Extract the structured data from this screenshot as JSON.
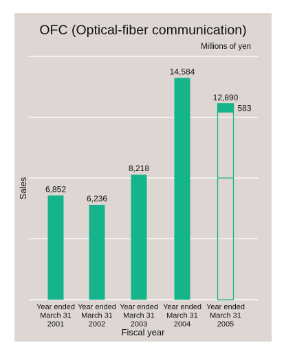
{
  "chart_data": {
    "type": "bar",
    "title": "OFC (Optical-fiber communication)",
    "unit_label": "Millions of yen",
    "ylabel": "Sales",
    "xlabel": "Fiscal year",
    "ylim": [
      0,
      16000
    ],
    "grid": true,
    "categories": [
      [
        "Year ended",
        "March 31",
        "2001"
      ],
      [
        "Year ended",
        "March 31",
        "2002"
      ],
      [
        "Year ended",
        "March 31",
        "2003"
      ],
      [
        "Year ended",
        "March 31",
        "2004"
      ],
      [
        "Year ended",
        "March 31",
        "2005"
      ]
    ],
    "series": [
      {
        "values": [
          6852,
          6236,
          8218,
          14584,
          583
        ],
        "labels": [
          "6,852",
          "6,236",
          "8,218",
          "14,584",
          "583"
        ]
      }
    ],
    "outline_bar": {
      "category_index": 4,
      "total": 12890,
      "total_label": "12,890",
      "inner_divider_value": 8000
    },
    "colors": {
      "bar": "#16b48a",
      "panel": "#ddd6d3",
      "grid": "#ffffff"
    }
  }
}
